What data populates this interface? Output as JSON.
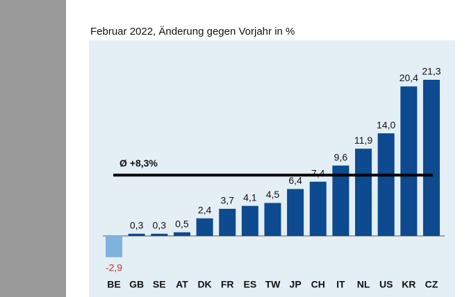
{
  "chart_data": {
    "type": "bar",
    "title": "Februar 2022, Änderung gegen Vorjahr in %",
    "categories": [
      "BE",
      "GB",
      "SE",
      "AT",
      "DK",
      "FR",
      "ES",
      "TW",
      "JP",
      "CH",
      "IT",
      "NL",
      "US",
      "KR",
      "CZ"
    ],
    "values": [
      -2.9,
      0.3,
      0.3,
      0.5,
      2.4,
      3.7,
      4.1,
      4.5,
      6.4,
      7.4,
      9.6,
      11.9,
      14.0,
      20.4,
      21.3
    ],
    "value_labels": [
      "-2,9",
      "0,3",
      "0,3",
      "0,5",
      "2,4",
      "3,7",
      "4,1",
      "4,5",
      "6,4",
      "7,4",
      "9,6",
      "11,9",
      "14,0",
      "20,4",
      "21,3"
    ],
    "color": "#0d4a8f",
    "negative_color": "#7fb2dc",
    "average": 8.3,
    "average_label": "Ø +8,3%"
  }
}
